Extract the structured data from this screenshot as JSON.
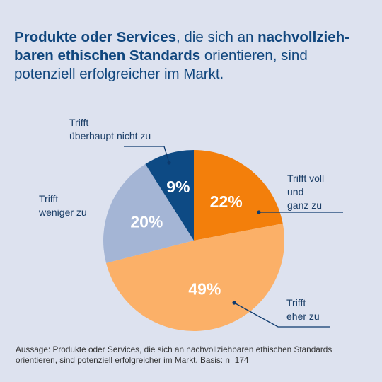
{
  "title": {
    "part1": "Produkte oder Services",
    "part2": ", die sich an ",
    "part3": "nachvollzieh-baren ethischen Standards",
    "part4": " orientieren, sind potenziell erfolgreicher im Markt."
  },
  "chart_data": {
    "type": "pie",
    "slices": [
      {
        "label": "Trifft voll und ganz zu",
        "label_lines": [
          "Trifft voll",
          "und",
          "ganz zu"
        ],
        "value": 22,
        "display": "22%",
        "color": "#f37f0b"
      },
      {
        "label": "Trifft eher zu",
        "label_lines": [
          "Trifft",
          "eher zu"
        ],
        "value": 49,
        "display": "49%",
        "color": "#fbb068"
      },
      {
        "label": "Trifft weniger zu",
        "label_lines": [
          "Trifft",
          "weniger zu"
        ],
        "value": 20,
        "display": "20%",
        "color": "#a4b5d5"
      },
      {
        "label": "Trifft überhaupt nicht zu",
        "label_lines": [
          "Trifft",
          "überhaupt nicht zu"
        ],
        "value": 9,
        "display": "9%",
        "color": "#0d4a84"
      }
    ]
  },
  "footnote": "Aussage: Produkte oder Services, die sich an nachvollziehbaren ethischen Standards orientieren, sind potenziell erfolgreicher im Markt. Basis: n=174",
  "colors": {
    "background": "#dde2ef",
    "title": "#11477e",
    "leader": "#0d3a6e"
  }
}
